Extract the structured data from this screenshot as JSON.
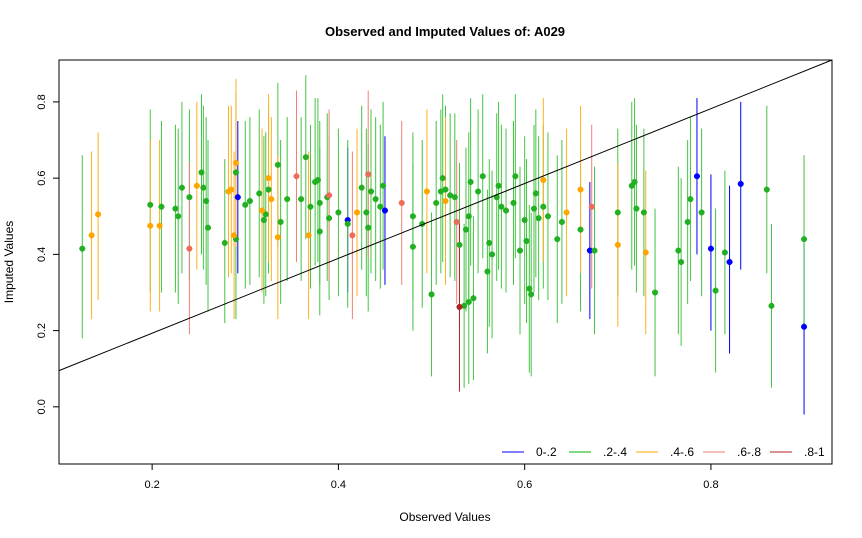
{
  "chart_data": {
    "type": "scatter",
    "title": "Observed and Imputed Values of: A029",
    "xlabel": "Observed Values",
    "ylabel": "Imputed Values",
    "xlim": [
      0.1,
      0.93
    ],
    "ylim": [
      -0.15,
      0.91
    ],
    "x_ticks": [
      0.2,
      0.4,
      0.6,
      0.8
    ],
    "x_tick_labels": [
      "0.2",
      "0.4",
      "0.6",
      "0.8"
    ],
    "y_ticks": [
      0.0,
      0.2,
      0.4,
      0.6,
      0.8
    ],
    "y_tick_labels": [
      "0.0",
      "0.2",
      "0.4",
      "0.6",
      "0.8"
    ],
    "reference_line": {
      "x": [
        0.1,
        0.93
      ],
      "y": [
        0.095,
        0.91
      ]
    },
    "legend": {
      "placement": "bottom-right",
      "entries": [
        {
          "label": "0-.2",
          "color": "#0000ff"
        },
        {
          "label": ".2-.4",
          "color": "#00b000"
        },
        {
          "label": ".4-.6",
          "color": "#ffa500"
        },
        {
          "label": ".6-.8",
          "color": "#f08070"
        },
        {
          "label": ".8-1",
          "color": "#b22222"
        }
      ]
    },
    "group_colors": {
      "0-.2": {
        "line": "#0000ff",
        "point": "#0000ff"
      },
      ".2-.4": {
        "line": "#44c444",
        "point": "#22b022"
      },
      ".4-.6": {
        "line": "#ffb020",
        "point": "#ffa500"
      },
      ".6-.8": {
        "line": "#f08070",
        "point": "#f06a5a"
      },
      ".8-1": {
        "line": "#b22222",
        "point": "#b22222"
      }
    },
    "series": [
      {
        "group": "0-.2",
        "points": [
          [
            0.292,
            0.55,
            0.35,
            0.75
          ],
          [
            0.41,
            0.49,
            0.3,
            0.68
          ],
          [
            0.45,
            0.515,
            0.32,
            0.71
          ],
          [
            0.67,
            0.41,
            0.23,
            0.59
          ],
          [
            0.785,
            0.605,
            0.4,
            0.81
          ],
          [
            0.8,
            0.415,
            0.2,
            0.61
          ],
          [
            0.82,
            0.38,
            0.14,
            0.58
          ],
          [
            0.832,
            0.585,
            0.36,
            0.8
          ],
          [
            0.9,
            0.21,
            -0.02,
            0.43
          ]
        ]
      },
      {
        "group": ".2-.4",
        "points": [
          [
            0.125,
            0.415,
            0.18,
            0.66
          ],
          [
            0.198,
            0.53,
            0.3,
            0.78
          ],
          [
            0.21,
            0.525,
            0.3,
            0.75
          ],
          [
            0.225,
            0.52,
            0.3,
            0.74
          ],
          [
            0.228,
            0.5,
            0.27,
            0.73
          ],
          [
            0.232,
            0.575,
            0.35,
            0.8
          ],
          [
            0.24,
            0.55,
            0.33,
            0.78
          ],
          [
            0.253,
            0.615,
            0.4,
            0.82
          ],
          [
            0.255,
            0.575,
            0.36,
            0.79
          ],
          [
            0.258,
            0.54,
            0.32,
            0.76
          ],
          [
            0.26,
            0.47,
            0.25,
            0.7
          ],
          [
            0.278,
            0.43,
            0.22,
            0.65
          ],
          [
            0.29,
            0.44,
            0.23,
            0.66
          ],
          [
            0.29,
            0.615,
            0.4,
            0.83
          ],
          [
            0.3,
            0.53,
            0.31,
            0.75
          ],
          [
            0.305,
            0.54,
            0.32,
            0.76
          ],
          [
            0.315,
            0.56,
            0.34,
            0.78
          ],
          [
            0.32,
            0.49,
            0.27,
            0.71
          ],
          [
            0.322,
            0.505,
            0.29,
            0.72
          ],
          [
            0.325,
            0.57,
            0.35,
            0.79
          ],
          [
            0.335,
            0.635,
            0.42,
            0.85
          ],
          [
            0.338,
            0.485,
            0.27,
            0.7
          ],
          [
            0.345,
            0.545,
            0.33,
            0.76
          ],
          [
            0.36,
            0.545,
            0.33,
            0.76
          ],
          [
            0.365,
            0.655,
            0.44,
            0.87
          ],
          [
            0.37,
            0.525,
            0.31,
            0.74
          ],
          [
            0.375,
            0.59,
            0.37,
            0.81
          ],
          [
            0.378,
            0.595,
            0.38,
            0.81
          ],
          [
            0.38,
            0.46,
            0.24,
            0.68
          ],
          [
            0.38,
            0.535,
            0.32,
            0.75
          ],
          [
            0.388,
            0.55,
            0.33,
            0.77
          ],
          [
            0.39,
            0.495,
            0.28,
            0.71
          ],
          [
            0.4,
            0.51,
            0.29,
            0.73
          ],
          [
            0.41,
            0.48,
            0.26,
            0.7
          ],
          [
            0.425,
            0.575,
            0.36,
            0.79
          ],
          [
            0.43,
            0.51,
            0.29,
            0.73
          ],
          [
            0.432,
            0.47,
            0.25,
            0.69
          ],
          [
            0.435,
            0.565,
            0.35,
            0.78
          ],
          [
            0.44,
            0.545,
            0.33,
            0.76
          ],
          [
            0.445,
            0.525,
            0.31,
            0.74
          ],
          [
            0.448,
            0.58,
            0.36,
            0.8
          ],
          [
            0.48,
            0.42,
            0.2,
            0.64
          ],
          [
            0.48,
            0.5,
            0.28,
            0.72
          ],
          [
            0.49,
            0.48,
            0.26,
            0.7
          ],
          [
            0.5,
            0.295,
            0.08,
            0.51
          ],
          [
            0.505,
            0.535,
            0.32,
            0.75
          ],
          [
            0.51,
            0.565,
            0.35,
            0.78
          ],
          [
            0.512,
            0.6,
            0.38,
            0.82
          ],
          [
            0.515,
            0.57,
            0.35,
            0.79
          ],
          [
            0.52,
            0.555,
            0.34,
            0.77
          ],
          [
            0.525,
            0.55,
            0.33,
            0.77
          ],
          [
            0.53,
            0.425,
            0.21,
            0.64
          ],
          [
            0.535,
            0.265,
            0.05,
            0.48
          ],
          [
            0.537,
            0.465,
            0.25,
            0.68
          ],
          [
            0.54,
            0.5,
            0.28,
            0.72
          ],
          [
            0.54,
            0.275,
            0.06,
            0.49
          ],
          [
            0.542,
            0.59,
            0.37,
            0.81
          ],
          [
            0.545,
            0.285,
            0.07,
            0.5
          ],
          [
            0.55,
            0.565,
            0.35,
            0.78
          ],
          [
            0.555,
            0.605,
            0.39,
            0.82
          ],
          [
            0.56,
            0.355,
            0.14,
            0.57
          ],
          [
            0.562,
            0.43,
            0.21,
            0.65
          ],
          [
            0.565,
            0.4,
            0.18,
            0.62
          ],
          [
            0.57,
            0.55,
            0.33,
            0.77
          ],
          [
            0.572,
            0.58,
            0.36,
            0.8
          ],
          [
            0.575,
            0.525,
            0.31,
            0.74
          ],
          [
            0.58,
            0.515,
            0.3,
            0.73
          ],
          [
            0.588,
            0.535,
            0.32,
            0.75
          ],
          [
            0.59,
            0.605,
            0.39,
            0.82
          ],
          [
            0.595,
            0.41,
            0.19,
            0.63
          ],
          [
            0.6,
            0.49,
            0.27,
            0.71
          ],
          [
            0.602,
            0.435,
            0.22,
            0.65
          ],
          [
            0.605,
            0.31,
            0.09,
            0.53
          ],
          [
            0.607,
            0.295,
            0.08,
            0.51
          ],
          [
            0.61,
            0.52,
            0.3,
            0.74
          ],
          [
            0.612,
            0.56,
            0.34,
            0.78
          ],
          [
            0.615,
            0.495,
            0.28,
            0.71
          ],
          [
            0.62,
            0.525,
            0.31,
            0.74
          ],
          [
            0.625,
            0.5,
            0.28,
            0.72
          ],
          [
            0.635,
            0.44,
            0.22,
            0.66
          ],
          [
            0.64,
            0.485,
            0.27,
            0.7
          ],
          [
            0.66,
            0.465,
            0.25,
            0.68
          ],
          [
            0.675,
            0.41,
            0.19,
            0.63
          ],
          [
            0.7,
            0.51,
            0.29,
            0.73
          ],
          [
            0.715,
            0.58,
            0.36,
            0.8
          ],
          [
            0.718,
            0.59,
            0.37,
            0.81
          ],
          [
            0.72,
            0.52,
            0.3,
            0.74
          ],
          [
            0.728,
            0.51,
            0.29,
            0.73
          ],
          [
            0.74,
            0.3,
            0.08,
            0.52
          ],
          [
            0.765,
            0.41,
            0.19,
            0.63
          ],
          [
            0.768,
            0.38,
            0.16,
            0.6
          ],
          [
            0.775,
            0.485,
            0.27,
            0.7
          ],
          [
            0.778,
            0.545,
            0.33,
            0.76
          ],
          [
            0.79,
            0.51,
            0.29,
            0.73
          ],
          [
            0.805,
            0.305,
            0.09,
            0.52
          ],
          [
            0.815,
            0.405,
            0.19,
            0.62
          ],
          [
            0.86,
            0.57,
            0.35,
            0.79
          ],
          [
            0.865,
            0.265,
            0.05,
            0.48
          ],
          [
            0.9,
            0.44,
            0.22,
            0.66
          ]
        ]
      },
      {
        "group": ".4-.6",
        "points": [
          [
            0.135,
            0.45,
            0.23,
            0.67
          ],
          [
            0.142,
            0.505,
            0.28,
            0.72
          ],
          [
            0.198,
            0.475,
            0.25,
            0.7
          ],
          [
            0.208,
            0.475,
            0.25,
            0.7
          ],
          [
            0.248,
            0.58,
            0.36,
            0.8
          ],
          [
            0.282,
            0.565,
            0.34,
            0.79
          ],
          [
            0.285,
            0.57,
            0.35,
            0.79
          ],
          [
            0.288,
            0.45,
            0.23,
            0.67
          ],
          [
            0.29,
            0.64,
            0.42,
            0.86
          ],
          [
            0.318,
            0.515,
            0.3,
            0.73
          ],
          [
            0.325,
            0.6,
            0.38,
            0.82
          ],
          [
            0.328,
            0.545,
            0.33,
            0.76
          ],
          [
            0.335,
            0.445,
            0.23,
            0.66
          ],
          [
            0.368,
            0.45,
            0.23,
            0.67
          ],
          [
            0.42,
            0.51,
            0.29,
            0.73
          ],
          [
            0.495,
            0.565,
            0.35,
            0.78
          ],
          [
            0.515,
            0.54,
            0.32,
            0.76
          ],
          [
            0.62,
            0.595,
            0.38,
            0.81
          ],
          [
            0.645,
            0.51,
            0.29,
            0.73
          ],
          [
            0.66,
            0.57,
            0.35,
            0.79
          ],
          [
            0.7,
            0.425,
            0.21,
            0.64
          ],
          [
            0.73,
            0.405,
            0.19,
            0.62
          ]
        ]
      },
      {
        "group": ".6-.8",
        "points": [
          [
            0.24,
            0.415,
            0.19,
            0.64
          ],
          [
            0.355,
            0.605,
            0.38,
            0.83
          ],
          [
            0.39,
            0.555,
            0.33,
            0.78
          ],
          [
            0.415,
            0.45,
            0.23,
            0.67
          ],
          [
            0.432,
            0.61,
            0.39,
            0.83
          ],
          [
            0.468,
            0.535,
            0.32,
            0.75
          ],
          [
            0.527,
            0.485,
            0.27,
            0.7
          ],
          [
            0.672,
            0.525,
            0.31,
            0.74
          ]
        ]
      },
      {
        "group": ".8-1",
        "points": [
          [
            0.53,
            0.262,
            0.04,
            0.48
          ]
        ]
      }
    ]
  }
}
